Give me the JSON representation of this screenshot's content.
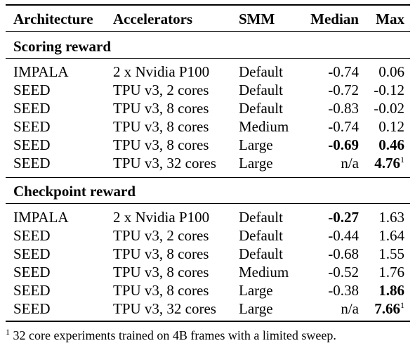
{
  "columns": [
    "Architecture",
    "Accelerators",
    "SMM",
    "Median",
    "Max"
  ],
  "sections": [
    {
      "title": "Scoring reward",
      "rows": [
        {
          "arch": "IMPALA",
          "acc": "2 x Nvidia P100",
          "smm": "Default",
          "median": "-0.74",
          "max": "0.06",
          "median_bold": false,
          "max_bold": false,
          "max_sup": ""
        },
        {
          "arch": "SEED",
          "acc": "TPU v3, 2 cores",
          "smm": "Default",
          "median": "-0.72",
          "max": "-0.12",
          "median_bold": false,
          "max_bold": false,
          "max_sup": ""
        },
        {
          "arch": "SEED",
          "acc": "TPU v3, 8 cores",
          "smm": "Default",
          "median": "-0.83",
          "max": "-0.02",
          "median_bold": false,
          "max_bold": false,
          "max_sup": ""
        },
        {
          "arch": "SEED",
          "acc": "TPU v3, 8 cores",
          "smm": "Medium",
          "median": "-0.74",
          "max": "0.12",
          "median_bold": false,
          "max_bold": false,
          "max_sup": ""
        },
        {
          "arch": "SEED",
          "acc": "TPU v3, 8 cores",
          "smm": "Large",
          "median": "-0.69",
          "max": "0.46",
          "median_bold": true,
          "max_bold": true,
          "max_sup": ""
        },
        {
          "arch": "SEED",
          "acc": "TPU v3, 32 cores",
          "smm": "Large",
          "median": "n/a",
          "max": "4.76",
          "median_bold": false,
          "max_bold": true,
          "max_sup": "1"
        }
      ]
    },
    {
      "title": "Checkpoint reward",
      "rows": [
        {
          "arch": "IMPALA",
          "acc": "2 x Nvidia P100",
          "smm": "Default",
          "median": "-0.27",
          "max": "1.63",
          "median_bold": true,
          "max_bold": false,
          "max_sup": ""
        },
        {
          "arch": "SEED",
          "acc": "TPU v3, 2 cores",
          "smm": "Default",
          "median": "-0.44",
          "max": "1.64",
          "median_bold": false,
          "max_bold": false,
          "max_sup": ""
        },
        {
          "arch": "SEED",
          "acc": "TPU v3, 8 cores",
          "smm": "Default",
          "median": "-0.68",
          "max": "1.55",
          "median_bold": false,
          "max_bold": false,
          "max_sup": ""
        },
        {
          "arch": "SEED",
          "acc": "TPU v3, 8 cores",
          "smm": "Medium",
          "median": "-0.52",
          "max": "1.76",
          "median_bold": false,
          "max_bold": false,
          "max_sup": ""
        },
        {
          "arch": "SEED",
          "acc": "TPU v3, 8 cores",
          "smm": "Large",
          "median": "-0.38",
          "max": "1.86",
          "median_bold": false,
          "max_bold": true,
          "max_sup": ""
        },
        {
          "arch": "SEED",
          "acc": "TPU v3, 32 cores",
          "smm": "Large",
          "median": "n/a",
          "max": "7.66",
          "median_bold": false,
          "max_bold": true,
          "max_sup": "1"
        }
      ]
    }
  ],
  "footnote": {
    "marker": "1",
    "text": "32 core experiments trained on 4B frames with a limited sweep."
  }
}
